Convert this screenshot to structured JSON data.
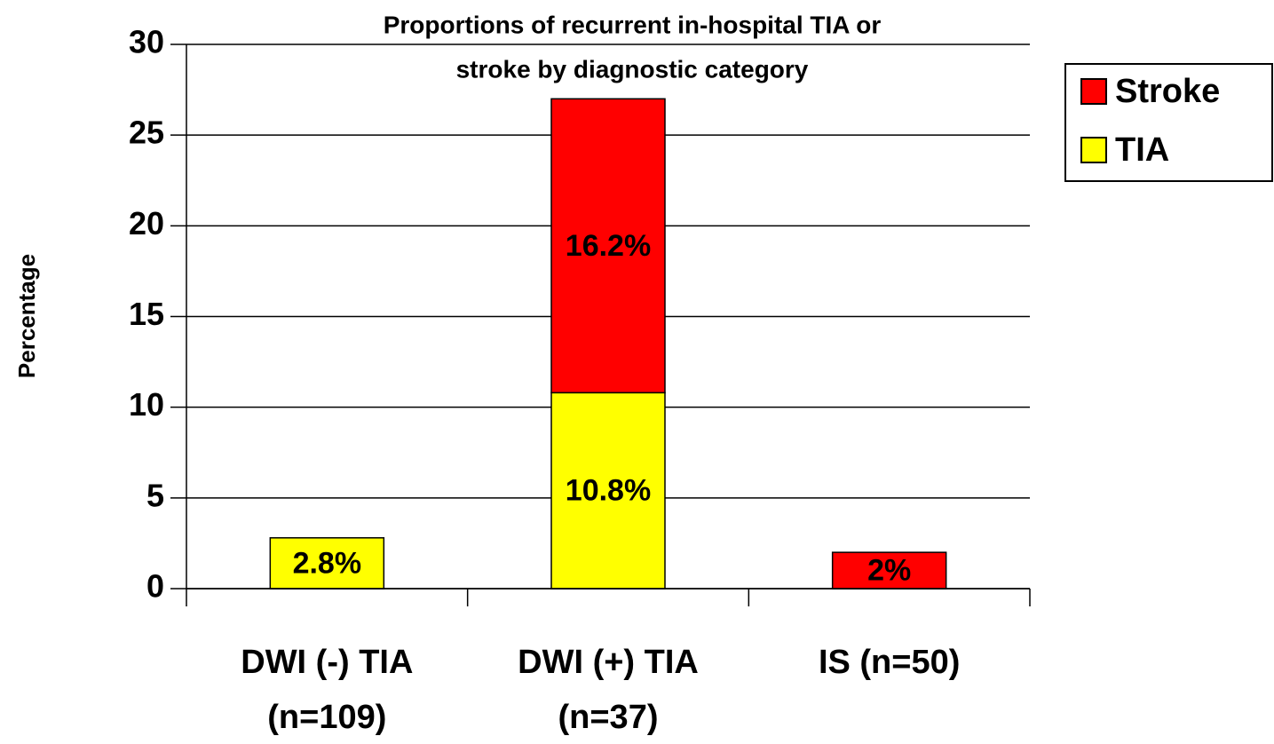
{
  "chart_data": {
    "type": "stacked_bar",
    "title": [
      "Proportions of recurrent in-hospital TIA or",
      "stroke by diagnostic category"
    ],
    "y_label": "Percentage",
    "categories": [
      [
        "DWI (-) TIA",
        "(n=109)"
      ],
      [
        "DWI (+) TIA",
        "(n=37)"
      ],
      [
        "IS (n=50)"
      ]
    ],
    "series": [
      {
        "name": "TIA",
        "color": "#ffff00",
        "values": [
          2.8,
          10.8,
          null
        ],
        "value_labels": [
          "2.8%",
          "10.8%",
          null
        ]
      },
      {
        "name": "Stroke",
        "color": "#ff0000",
        "values": [
          null,
          16.2,
          2
        ],
        "value_labels": [
          null,
          "16.2%",
          "2%"
        ]
      }
    ],
    "ylim": [
      0,
      30
    ],
    "yticks": [
      0,
      5,
      10,
      15,
      20,
      25,
      30
    ],
    "grid": true,
    "legend": "top-right"
  }
}
